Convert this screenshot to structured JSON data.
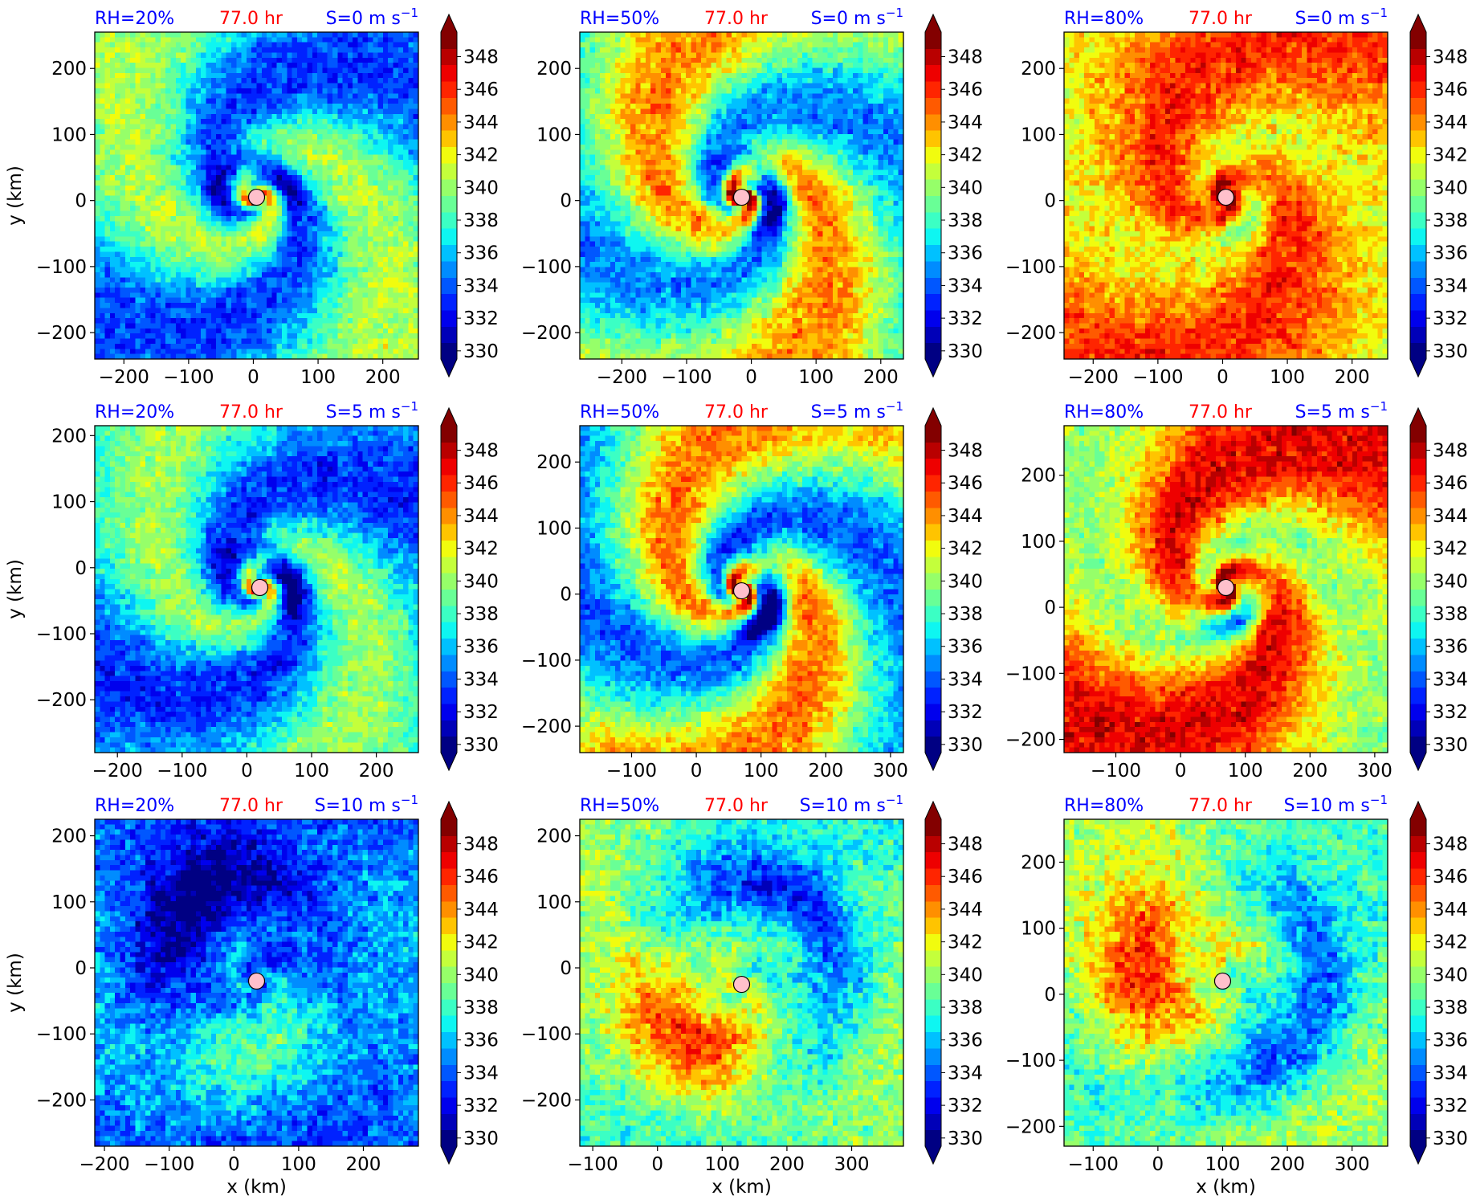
{
  "figure": {
    "colorbar": {
      "min": 330,
      "max": 349,
      "step": 1,
      "ticks": [
        "330",
        "332",
        "334",
        "336",
        "338",
        "340",
        "342",
        "344",
        "346",
        "348"
      ],
      "extend": "both",
      "colormap": [
        "#000083",
        "#0000b8",
        "#0000ed",
        "#0022ff",
        "#0057ff",
        "#008cff",
        "#00c1ff",
        "#0ef6f1",
        "#3bffc4",
        "#69ff96",
        "#96ff69",
        "#c4ff3b",
        "#f1fc0e",
        "#ffc400",
        "#ff8f00",
        "#ff5a00",
        "#ff2500",
        "#ee0000",
        "#b90000",
        "#830000"
      ]
    },
    "xlabel": "x (km)",
    "ylabel": "y (km)",
    "time_label": "77.0 hr",
    "colors": {
      "rh_label": "#0000ff",
      "time_label": "#ff0000",
      "shear_label": "#0000ff",
      "center_marker": "#ffc0cb"
    }
  },
  "chart_data": [
    {
      "type": "heatmap",
      "rh": "RH=20%",
      "time": "77.0 hr",
      "shear": "S=0 m s",
      "shear_exp": "−1",
      "xticks": [
        "−200",
        "−100",
        "0",
        "100",
        "200"
      ],
      "yticks": [
        "200",
        "100",
        "0",
        "−100",
        "−200"
      ],
      "xlim": [
        -245,
        255
      ],
      "ylim": [
        -240,
        255
      ],
      "center": [
        5,
        5
      ],
      "mean": 337.2,
      "feature": "spiral",
      "core_amp": 8,
      "dry_amp": 3.5,
      "rot": 0,
      "show_ylabel": true,
      "show_xlabel": false
    },
    {
      "type": "heatmap",
      "rh": "RH=50%",
      "time": "77.0 hr",
      "shear": "S=0 m s",
      "shear_exp": "−1",
      "xticks": [
        "−200",
        "−100",
        "0",
        "100",
        "200"
      ],
      "yticks": [
        "200",
        "100",
        "0",
        "−100",
        "−200"
      ],
      "xlim": [
        -265,
        235
      ],
      "ylim": [
        -240,
        255
      ],
      "center": [
        -15,
        5
      ],
      "mean": 339.5,
      "feature": "spiral",
      "core_amp": 10,
      "dry_amp": 4.5,
      "rot": 1.2,
      "show_ylabel": false,
      "show_xlabel": false
    },
    {
      "type": "heatmap",
      "rh": "RH=80%",
      "time": "77.0 hr",
      "shear": "S=0 m s",
      "shear_exp": "−1",
      "xticks": [
        "−200",
        "−100",
        "0",
        "100",
        "200"
      ],
      "yticks": [
        "200",
        "100",
        "0",
        "−100",
        "−200"
      ],
      "xlim": [
        -245,
        255
      ],
      "ylim": [
        -240,
        255
      ],
      "center": [
        5,
        5
      ],
      "mean": 343.8,
      "feature": "spiral",
      "core_amp": 6,
      "dry_amp": 2,
      "rot": 2.2,
      "show_ylabel": false,
      "show_xlabel": false
    },
    {
      "type": "heatmap",
      "rh": "RH=20%",
      "time": "77.0 hr",
      "shear": "S=5 m s",
      "shear_exp": "−1",
      "xticks": [
        "−200",
        "−100",
        "0",
        "100",
        "200"
      ],
      "yticks": [
        "200",
        "100",
        "0",
        "−100",
        "−200"
      ],
      "xlim": [
        -235,
        265
      ],
      "ylim": [
        -280,
        215
      ],
      "center": [
        20,
        -30
      ],
      "mean": 336.8,
      "feature": "spiral",
      "core_amp": 8,
      "dry_amp": 3.5,
      "rot": 0.6,
      "show_ylabel": true,
      "show_xlabel": false
    },
    {
      "type": "heatmap",
      "rh": "RH=50%",
      "time": "77.0 hr",
      "shear": "S=5 m s",
      "shear_exp": "−1",
      "xticks": [
        "−100",
        "0",
        "100",
        "200",
        "300"
      ],
      "yticks": [
        "200",
        "100",
        "0",
        "−100",
        "−200"
      ],
      "xlim": [
        -180,
        320
      ],
      "ylim": [
        -240,
        255
      ],
      "center": [
        70,
        5
      ],
      "mean": 339.3,
      "feature": "spiral",
      "core_amp": 10,
      "dry_amp": 5,
      "rot": 1.8,
      "show_ylabel": false,
      "show_xlabel": false
    },
    {
      "type": "heatmap",
      "rh": "RH=80%",
      "time": "77.0 hr",
      "shear": "S=5 m s",
      "shear_exp": "−1",
      "xticks": [
        "−100",
        "0",
        "100",
        "200",
        "300"
      ],
      "yticks": [
        "200",
        "100",
        "0",
        "−100",
        "−200"
      ],
      "xlim": [
        -180,
        320
      ],
      "ylim": [
        -220,
        275
      ],
      "center": [
        70,
        30
      ],
      "mean": 343.4,
      "feature": "spiral",
      "core_amp": 6,
      "dry_amp": 3.5,
      "rot": 2.8,
      "show_ylabel": false,
      "show_xlabel": false
    },
    {
      "type": "heatmap",
      "rh": "RH=20%",
      "time": "77.0 hr",
      "shear": "S=10 m s",
      "shear_exp": "−1",
      "xticks": [
        "−200",
        "−100",
        "0",
        "100",
        "200"
      ],
      "yticks": [
        "200",
        "100",
        "0",
        "−100",
        "−200"
      ],
      "xlim": [
        -215,
        285
      ],
      "ylim": [
        -270,
        225
      ],
      "center": [
        35,
        -20
      ],
      "mean": 334.6,
      "feature": "sheared",
      "core_amp": 2,
      "dry_amp": 4,
      "rot": 0.3,
      "show_ylabel": true,
      "show_xlabel": true
    },
    {
      "type": "heatmap",
      "rh": "RH=50%",
      "time": "77.0 hr",
      "shear": "S=10 m s",
      "shear_exp": "−1",
      "xticks": [
        "−100",
        "0",
        "100",
        "200",
        "300"
      ],
      "yticks": [
        "200",
        "100",
        "0",
        "−100",
        "−200"
      ],
      "xlim": [
        -120,
        380
      ],
      "ylim": [
        -270,
        225
      ],
      "center": [
        130,
        -25
      ],
      "mean": 338.8,
      "feature": "sheared",
      "core_amp": 2,
      "dry_amp": 6,
      "rot": 1.4,
      "show_ylabel": false,
      "show_xlabel": true
    },
    {
      "type": "heatmap",
      "rh": "RH=80%",
      "time": "77.0 hr",
      "shear": "S=10 m s",
      "shear_exp": "−1",
      "xticks": [
        "−100",
        "0",
        "100",
        "200",
        "300"
      ],
      "yticks": [
        "200",
        "100",
        "0",
        "−100",
        "−200"
      ],
      "xlim": [
        -145,
        355
      ],
      "ylim": [
        -230,
        265
      ],
      "center": [
        100,
        20
      ],
      "mean": 339.2,
      "feature": "sheared",
      "core_amp": 2,
      "dry_amp": 6,
      "rot": 2.5,
      "show_ylabel": false,
      "show_xlabel": true
    }
  ]
}
